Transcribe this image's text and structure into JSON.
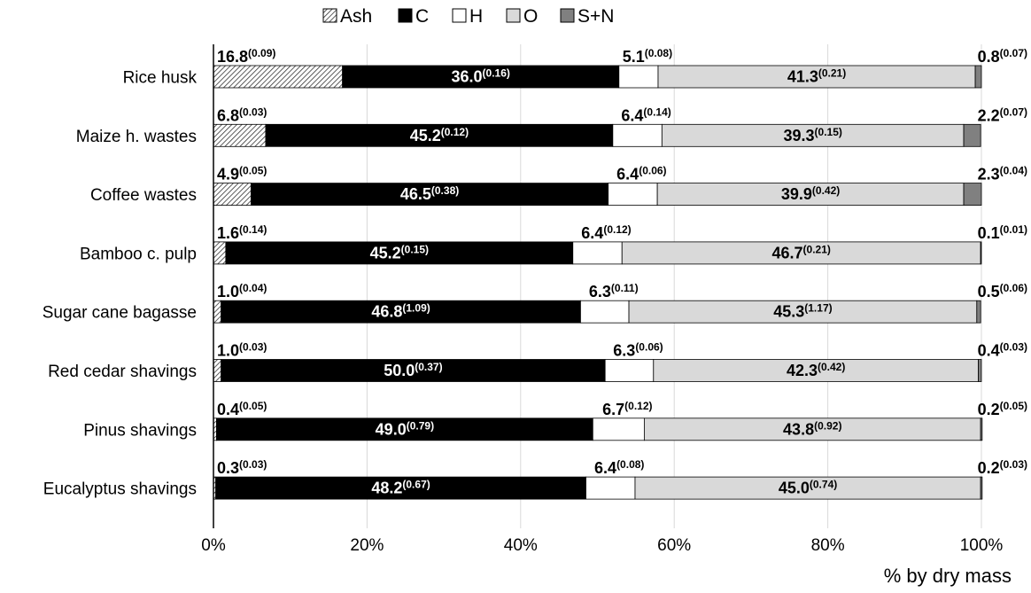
{
  "chart_data": {
    "type": "bar",
    "orientation": "horizontal",
    "stacked": true,
    "title": "",
    "xlabel": "% by dry mass",
    "ylabel": "",
    "xlim": [
      0,
      100
    ],
    "x_tick_labels": [
      "0%",
      "20%",
      "40%",
      "60%",
      "80%",
      "100%"
    ],
    "grid": "vertical",
    "legend_position": "top",
    "categories": [
      "Rice husk",
      "Maize h. wastes",
      "Coffee wastes",
      "Bamboo c. pulp",
      "Sugar cane bagasse",
      "Red cedar shavings",
      "Pinus shavings",
      "Eucalyptus shavings"
    ],
    "series": [
      {
        "name": "Ash",
        "fill": "hatch",
        "color": "#555555",
        "values": [
          16.8,
          6.8,
          4.9,
          1.6,
          1.0,
          1.0,
          0.4,
          0.3
        ],
        "sd": [
          "0.09",
          "0.03",
          "0.05",
          "0.14",
          "0.04",
          "0.03",
          "0.05",
          "0.03"
        ],
        "value_labels": [
          "16.8",
          "6.8",
          "4.9",
          "1.6",
          "1.0",
          "1.0",
          "0.4",
          "0.3"
        ]
      },
      {
        "name": "C",
        "fill": "solid",
        "color": "#000000",
        "values": [
          36.0,
          45.2,
          46.5,
          45.2,
          46.8,
          50.0,
          49.0,
          48.2
        ],
        "sd": [
          "0.16",
          "0.12",
          "0.38",
          "0.15",
          "1.09",
          "0.37",
          "0.79",
          "0.67"
        ],
        "value_labels": [
          "36.0",
          "45.2",
          "46.5",
          "45.2",
          "46.8",
          "50.0",
          "49.0",
          "48.2"
        ]
      },
      {
        "name": "H",
        "fill": "solid",
        "color": "#ffffff",
        "values": [
          5.1,
          6.4,
          6.4,
          6.4,
          6.3,
          6.3,
          6.7,
          6.4
        ],
        "sd": [
          "0.08",
          "0.14",
          "0.06",
          "0.12",
          "0.11",
          "0.06",
          "0.12",
          "0.08"
        ],
        "value_labels": [
          "5.1",
          "6.4",
          "6.4",
          "6.4",
          "6.3",
          "6.3",
          "6.7",
          "6.4"
        ]
      },
      {
        "name": "O",
        "fill": "solid",
        "color": "#d9d9d9",
        "values": [
          41.3,
          39.3,
          39.9,
          46.7,
          45.3,
          42.3,
          43.8,
          45.0
        ],
        "sd": [
          "0.21",
          "0.15",
          "0.42",
          "0.21",
          "1.17",
          "0.42",
          "0.92",
          "0.74"
        ],
        "value_labels": [
          "41.3",
          "39.3",
          "39.9",
          "46.7",
          "45.3",
          "42.3",
          "43.8",
          "45.0"
        ]
      },
      {
        "name": "S+N",
        "fill": "solid",
        "color": "#808080",
        "values": [
          0.8,
          2.2,
          2.3,
          0.1,
          0.5,
          0.4,
          0.2,
          0.2
        ],
        "sd": [
          "0.07",
          "0.07",
          "0.04",
          "0.01",
          "0.06",
          "0.03",
          "0.05",
          "0.03"
        ],
        "value_labels": [
          "0.8",
          "2.2",
          "2.3",
          "0.1",
          "0.5",
          "0.4",
          "0.2",
          "0.2"
        ]
      }
    ]
  }
}
